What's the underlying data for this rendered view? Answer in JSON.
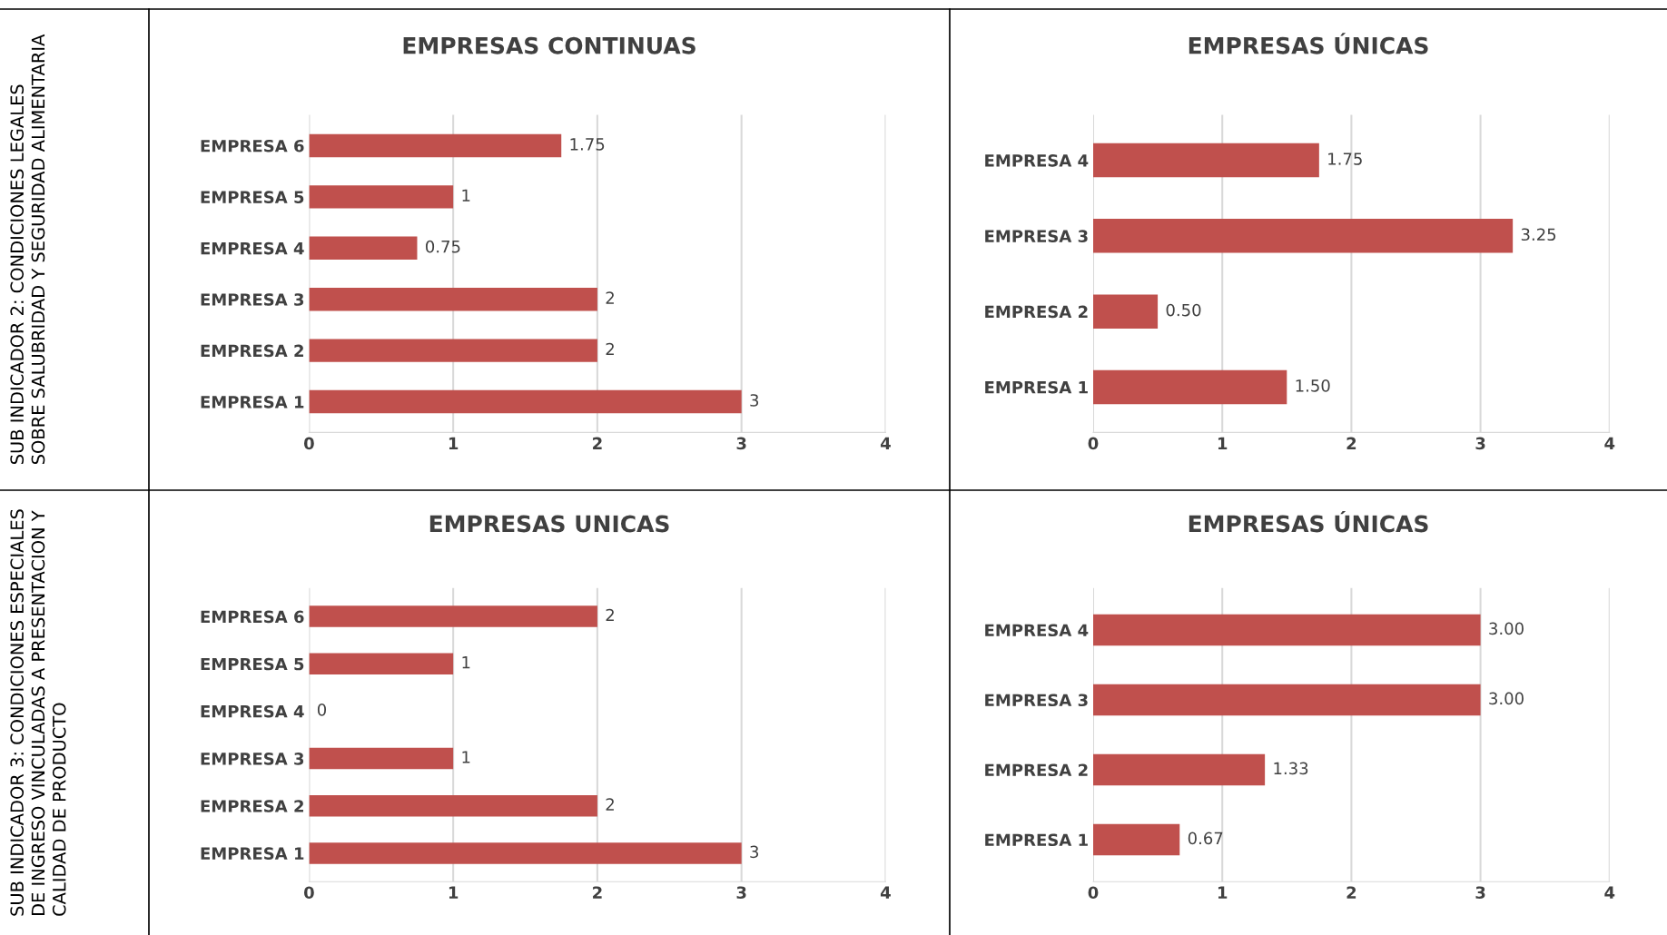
{
  "chart_data": [
    {
      "type": "bar",
      "orientation": "horizontal",
      "title": "EMPRESAS CONTINUAS",
      "annotations": [
        "SUB INDICADOR 2: CONDICIONES LEGALES SOBRE SALUBRIDAD Y SEGURIDAD ALIMENTARIA"
      ],
      "categories": [
        "EMPRESA 6",
        "EMPRESA 5",
        "EMPRESA 4",
        "EMPRESA 3",
        "EMPRESA 2",
        "EMPRESA 1"
      ],
      "values": [
        1.75,
        1,
        0.75,
        2,
        2,
        3
      ],
      "value_labels": [
        "1.75",
        "1",
        "0.75",
        "2",
        "2",
        "3"
      ],
      "color": "#c0504d",
      "xlim": [
        0,
        4
      ],
      "xticks": [
        0,
        1,
        2,
        3,
        4
      ],
      "grid": "x"
    },
    {
      "type": "bar",
      "orientation": "horizontal",
      "title": "EMPRESAS ÚNICAS",
      "categories": [
        "EMPRESA 4",
        "EMPRESA 3",
        "EMPRESA 2",
        "EMPRESA 1"
      ],
      "values": [
        1.75,
        3.25,
        0.5,
        1.5
      ],
      "value_labels": [
        "1.75",
        "3.25",
        "0.50",
        "1.50"
      ],
      "color": "#c0504d",
      "xlim": [
        0,
        4
      ],
      "xticks": [
        0,
        1,
        2,
        3,
        4
      ],
      "grid": "x"
    },
    {
      "type": "bar",
      "orientation": "horizontal",
      "title": "EMPRESAS UNICAS",
      "annotations": [
        "SUB INDICADOR 3: CONDICIONES ESPECIALES DE INGRESO VINCULADAS A PRESENTACION Y CALIDAD DE PRODUCTO"
      ],
      "categories": [
        "EMPRESA 6",
        "EMPRESA 5",
        "EMPRESA 4",
        "EMPRESA 3",
        "EMPRESA 2",
        "EMPRESA 1"
      ],
      "values": [
        2,
        1,
        0,
        1,
        2,
        3
      ],
      "value_labels": [
        "2",
        "1",
        "0",
        "1",
        "2",
        "3"
      ],
      "color": "#c0504d",
      "xlim": [
        0,
        4
      ],
      "xticks": [
        0,
        1,
        2,
        3,
        4
      ],
      "grid": "x"
    },
    {
      "type": "bar",
      "orientation": "horizontal",
      "title": "EMPRESAS ÚNICAS",
      "categories": [
        "EMPRESA 4",
        "EMPRESA 3",
        "EMPRESA 2",
        "EMPRESA 1"
      ],
      "values": [
        3.0,
        3.0,
        1.33,
        0.67
      ],
      "value_labels": [
        "3.00",
        "3.00",
        "1.33",
        "0.67"
      ],
      "color": "#c0504d",
      "xlim": [
        0,
        4
      ],
      "xticks": [
        0,
        1,
        2,
        3,
        4
      ],
      "grid": "x"
    }
  ]
}
